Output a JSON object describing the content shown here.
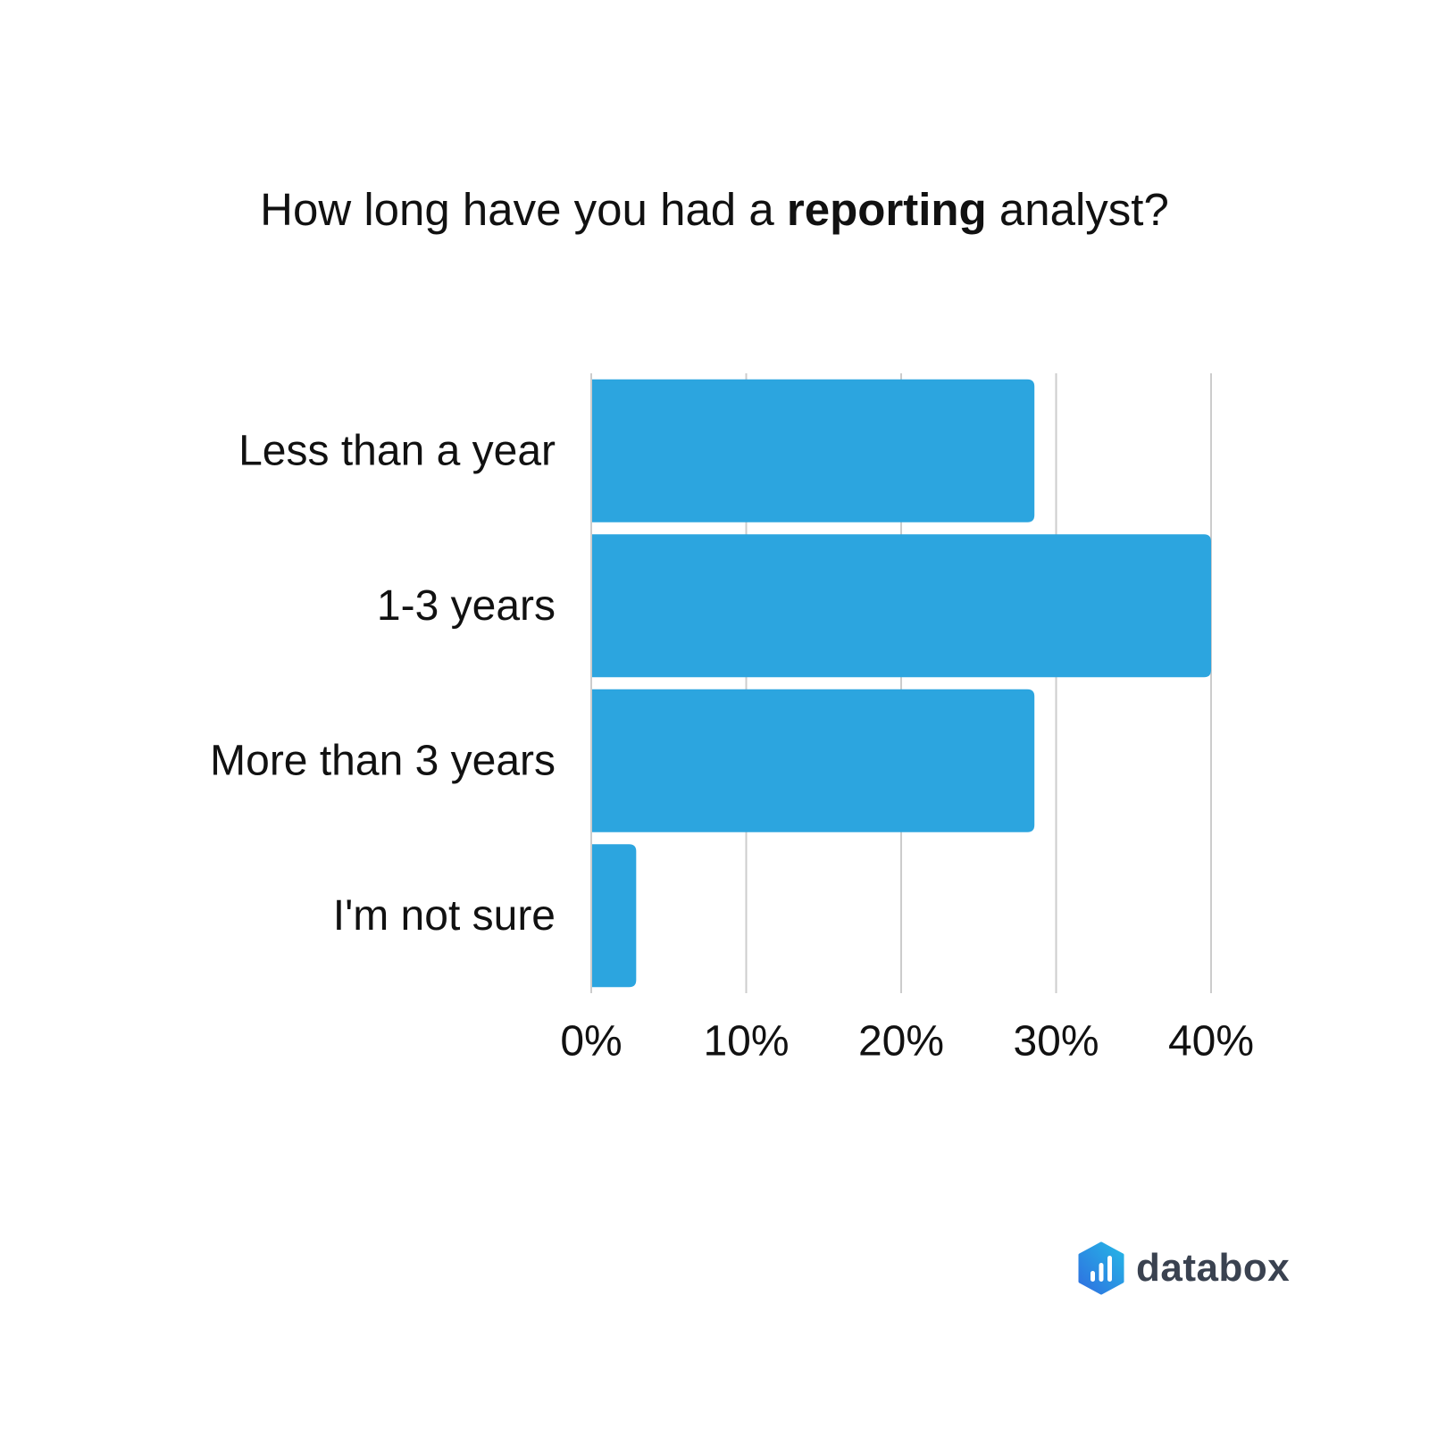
{
  "chart_data": {
    "type": "bar",
    "orientation": "horizontal",
    "title": {
      "before": "How long have you had a ",
      "emphasis": "reporting",
      "after": " analyst?"
    },
    "categories": [
      "Less than a year",
      "1-3 years",
      "More than 3 years",
      "I'm not sure"
    ],
    "values": [
      28.6,
      40.0,
      28.6,
      2.9
    ],
    "xlim": [
      0,
      40
    ],
    "xticks": [
      0,
      10,
      20,
      30,
      40
    ],
    "xtick_labels": [
      "0%",
      "10%",
      "20%",
      "30%",
      "40%"
    ],
    "grid": true,
    "legend": "none",
    "bar_color": "#2ca5df",
    "grid_color": "#cccccc"
  },
  "brand": {
    "name": "databox",
    "icon": "databox-logo-icon",
    "gradient": [
      "#2f6fe0",
      "#25b7e6"
    ]
  }
}
